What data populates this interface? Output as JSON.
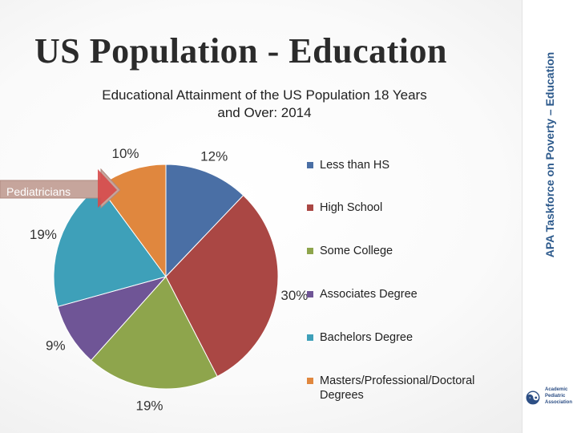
{
  "slide": {
    "title": "US Population - Education",
    "sidebar_text": "APA Taskforce on Poverty – Education",
    "logo": {
      "line1": "Academic",
      "line2": "Pediatric",
      "line3": "Association"
    },
    "callout_label": "Pediatricians"
  },
  "chart_data": {
    "type": "pie",
    "title_line1": "Educational Attainment of the US Population 18 Years",
    "title_line2": "and Over: 2014",
    "categories": [
      "Less than HS",
      "High School",
      "Some College",
      "Associates Degree",
      "Bachelors Degree",
      "Masters/Professional/Doctoral Degrees"
    ],
    "values": [
      12,
      30,
      19,
      9,
      19,
      10
    ],
    "labels": [
      "12%",
      "30%",
      "19%",
      "9%",
      "19%",
      "10%"
    ],
    "colors": [
      "#4a6fa5",
      "#aa4744",
      "#8ea54c",
      "#6f5596",
      "#3ea0b9",
      "#e0873e"
    ],
    "legend_position": "right"
  }
}
